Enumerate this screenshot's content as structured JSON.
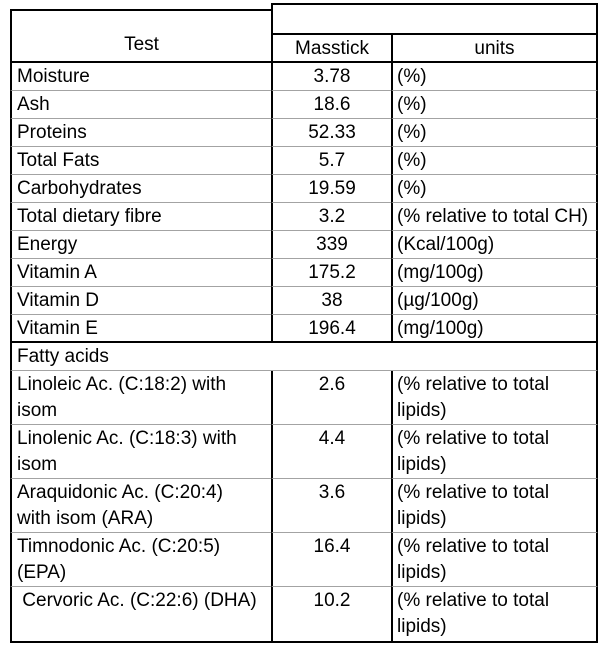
{
  "table": {
    "header": {
      "test_label": "Test",
      "masstick_label": "Masstick",
      "units_label": "units"
    },
    "rows": [
      {
        "test": "Moisture",
        "value": "3.78",
        "units": "(%)"
      },
      {
        "test": "Ash",
        "value": "18.6",
        "units": "(%)"
      },
      {
        "test": "Proteins",
        "value": "52.33",
        "units": "(%)"
      },
      {
        "test": "Total Fats",
        "value": "5.7",
        "units": "(%)"
      },
      {
        "test": "Carbohydrates",
        "value": "19.59",
        "units": "(%)"
      },
      {
        "test": "Total dietary fibre",
        "value": "3.2",
        "units": "(% relative to total CH)"
      },
      {
        "test": "Energy",
        "value": "339",
        "units": "(Kcal/100g)"
      },
      {
        "test": "Vitamin A",
        "value": "175.2",
        "units": "(mg/100g)"
      },
      {
        "test": "Vitamin D",
        "value": "38",
        "units": "(µg/100g)"
      },
      {
        "test": "Vitamin E",
        "value": "196.4",
        "units": "(mg/100g)"
      }
    ],
    "section_header": "Fatty acids",
    "fatty_rows": [
      {
        "test": "Linoleic Ac. (C:18:2) with\nisom",
        "value": "2.6",
        "units": "(% relative to total\nlipids)"
      },
      {
        "test": "Linolenic Ac. (C:18:3) with\nisom",
        "value": "4.4",
        "units": "(% relative to total\nlipids)"
      },
      {
        "test": "Araquidonic Ac. (C:20:4)\nwith isom (ARA)",
        "value": "3.6",
        "units": "(% relative to total\nlipids)"
      },
      {
        "test": "Timnodonic Ac. (C:20:5)\n(EPA)",
        "value": "16.4",
        "units": "(% relative to total\nlipids)"
      },
      {
        "test": " Cervoric Ac. (C:22:6) (DHA)",
        "value": "10.2",
        "units": "(% relative to total\nlipids)"
      }
    ],
    "colors": {
      "border": "#000000",
      "row_divider": "#a3a3a3"
    }
  }
}
